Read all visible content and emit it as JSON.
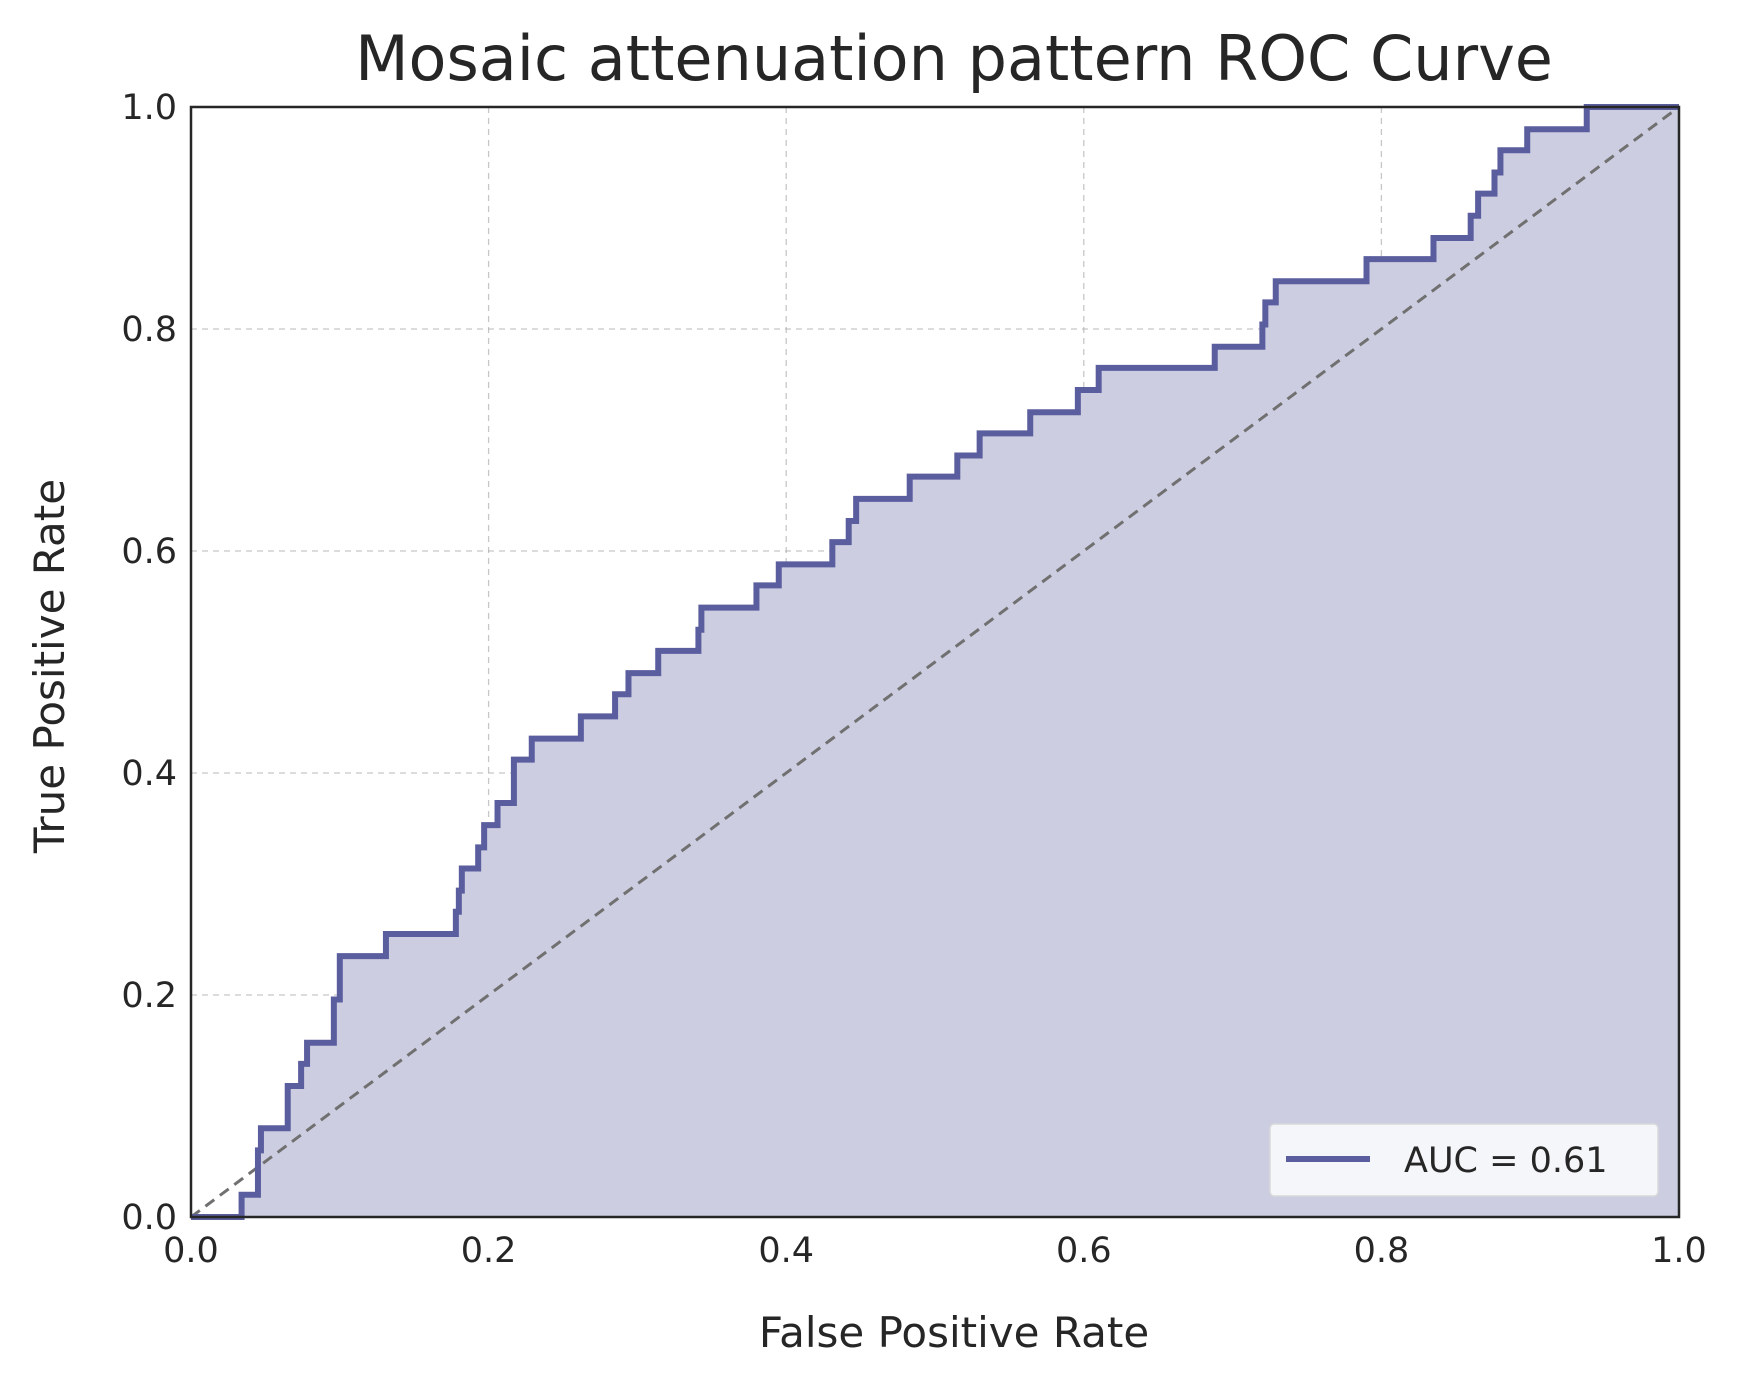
{
  "chart_data": {
    "type": "line",
    "title": "Mosaic attenuation pattern ROC Curve",
    "xlabel": "False Positive Rate",
    "ylabel": "True Positive Rate",
    "xlim": [
      0.0,
      1.0
    ],
    "ylim": [
      0.0,
      1.0
    ],
    "xticks": [
      "0.0",
      "0.2",
      "0.4",
      "0.6",
      "0.8",
      "1.0"
    ],
    "yticks": [
      "0.0",
      "0.2",
      "0.4",
      "0.6",
      "0.8",
      "1.0"
    ],
    "grid": true,
    "legend_position": "lower-right",
    "legend": [
      "AUC = 0.61"
    ],
    "colors": {
      "curve": "#5b5e9e",
      "fill": "#cccde1",
      "diagonal": "#707070",
      "frame": "#262626"
    },
    "series": [
      {
        "name": "AUC = 0.61",
        "auc": 0.61,
        "fpr": [
          0.0,
          0.034,
          0.034,
          0.045,
          0.045,
          0.047,
          0.047,
          0.065,
          0.065,
          0.074,
          0.074,
          0.078,
          0.078,
          0.096,
          0.096,
          0.1,
          0.1,
          0.131,
          0.131,
          0.178,
          0.178,
          0.18,
          0.18,
          0.182,
          0.182,
          0.193,
          0.193,
          0.197,
          0.197,
          0.206,
          0.206,
          0.217,
          0.217,
          0.229,
          0.229,
          0.262,
          0.262,
          0.285,
          0.285,
          0.294,
          0.294,
          0.314,
          0.314,
          0.341,
          0.341,
          0.343,
          0.343,
          0.38,
          0.38,
          0.395,
          0.395,
          0.431,
          0.431,
          0.442,
          0.442,
          0.447,
          0.447,
          0.483,
          0.483,
          0.515,
          0.515,
          0.53,
          0.53,
          0.564,
          0.564,
          0.596,
          0.596,
          0.61,
          0.61,
          0.688,
          0.688,
          0.72,
          0.72,
          0.722,
          0.722,
          0.729,
          0.729,
          0.79,
          0.79,
          0.835,
          0.835,
          0.86,
          0.86,
          0.865,
          0.865,
          0.876,
          0.876,
          0.88,
          0.88,
          0.898,
          0.898,
          0.938,
          0.938,
          1.0
        ],
        "tpr": [
          0.0,
          0.0,
          0.02,
          0.02,
          0.06,
          0.06,
          0.08,
          0.08,
          0.118,
          0.118,
          0.138,
          0.138,
          0.157,
          0.157,
          0.196,
          0.196,
          0.235,
          0.235,
          0.255,
          0.255,
          0.275,
          0.275,
          0.294,
          0.294,
          0.314,
          0.314,
          0.333,
          0.333,
          0.353,
          0.353,
          0.373,
          0.373,
          0.412,
          0.412,
          0.431,
          0.431,
          0.451,
          0.451,
          0.471,
          0.471,
          0.49,
          0.49,
          0.51,
          0.51,
          0.529,
          0.529,
          0.549,
          0.549,
          0.569,
          0.569,
          0.588,
          0.588,
          0.608,
          0.608,
          0.627,
          0.627,
          0.647,
          0.647,
          0.667,
          0.667,
          0.686,
          0.686,
          0.706,
          0.706,
          0.725,
          0.725,
          0.745,
          0.745,
          0.765,
          0.765,
          0.784,
          0.784,
          0.804,
          0.804,
          0.824,
          0.824,
          0.843,
          0.843,
          0.863,
          0.863,
          0.882,
          0.882,
          0.902,
          0.902,
          0.922,
          0.922,
          0.941,
          0.941,
          0.961,
          0.961,
          0.98,
          0.98,
          1.0,
          1.0
        ]
      },
      {
        "role": "chance-diagonal",
        "fpr": [
          0.0,
          1.0
        ],
        "tpr": [
          0.0,
          1.0
        ]
      }
    ]
  }
}
